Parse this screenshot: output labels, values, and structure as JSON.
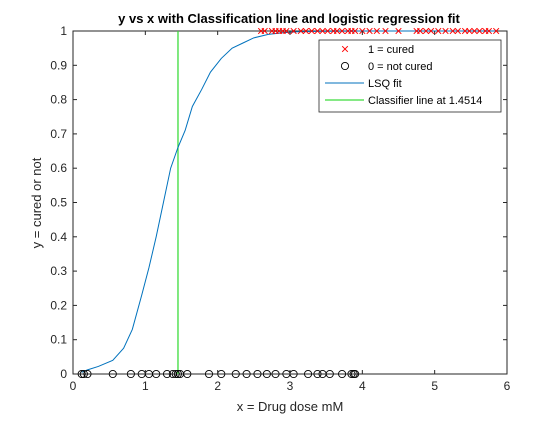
{
  "chart_data": {
    "type": "scatter",
    "title": "y vs x with Classification line and logistic regression fit",
    "xlabel": "x = Drug dose mM",
    "ylabel": "y = cured or not",
    "xlim": [
      0,
      6
    ],
    "ylim": [
      0,
      1
    ],
    "xticks": [
      0,
      1,
      2,
      3,
      4,
      5,
      6
    ],
    "yticks": [
      0,
      0.1,
      0.2,
      0.3,
      0.4,
      0.5,
      0.6,
      0.7,
      0.8,
      0.9,
      1
    ],
    "xtick_labels": [
      "0",
      "1",
      "2",
      "3",
      "4",
      "5",
      "6"
    ],
    "ytick_labels": [
      "0",
      "0.1",
      "0.2",
      "0.3",
      "0.4",
      "0.5",
      "0.6",
      "0.7",
      "0.8",
      "0.9",
      "1"
    ],
    "grid": false,
    "legend_position": "top-right",
    "series": [
      {
        "name": "1 = cured",
        "kind": "scatter",
        "marker": "x",
        "color": "#ff0000",
        "x": [
          2.6,
          2.65,
          2.75,
          2.8,
          2.85,
          2.9,
          2.95,
          3.05,
          3.15,
          3.22,
          3.3,
          3.38,
          3.45,
          3.52,
          3.6,
          3.65,
          3.72,
          3.8,
          3.85,
          3.9,
          4.0,
          4.1,
          4.2,
          4.32,
          4.5,
          4.75,
          4.8,
          4.88,
          4.95,
          5.05,
          5.15,
          5.25,
          5.32,
          5.42,
          5.48,
          5.55,
          5.62,
          5.7,
          5.75,
          5.85
        ],
        "y": [
          1,
          1,
          1,
          1,
          1,
          1,
          1,
          1,
          1,
          1,
          1,
          1,
          1,
          1,
          1,
          1,
          1,
          1,
          1,
          1,
          1,
          1,
          1,
          1,
          1,
          1,
          1,
          1,
          1,
          1,
          1,
          1,
          1,
          1,
          1,
          1,
          1,
          1,
          1,
          1
        ]
      },
      {
        "name": "0 = not cured",
        "kind": "scatter",
        "marker": "o",
        "color": "#000000",
        "x": [
          0.12,
          0.15,
          0.2,
          0.55,
          0.8,
          0.95,
          1.05,
          1.15,
          1.3,
          1.38,
          1.42,
          1.45,
          1.48,
          1.58,
          1.88,
          2.05,
          2.25,
          2.4,
          2.55,
          2.68,
          2.8,
          2.95,
          3.05,
          3.25,
          3.38,
          3.45,
          3.55,
          3.72,
          3.85,
          3.88,
          3.9
        ],
        "y": [
          0,
          0,
          0,
          0,
          0,
          0,
          0,
          0,
          0,
          0,
          0,
          0,
          0,
          0,
          0,
          0,
          0,
          0,
          0,
          0,
          0,
          0,
          0,
          0,
          0,
          0,
          0,
          0,
          0,
          0,
          0
        ]
      },
      {
        "name": "LSQ fit",
        "kind": "line",
        "color": "#0072bd",
        "x": [
          0.12,
          0.2,
          0.35,
          0.55,
          0.7,
          0.82,
          0.95,
          1.05,
          1.15,
          1.25,
          1.35,
          1.45,
          1.55,
          1.65,
          1.78,
          1.9,
          2.05,
          2.2,
          2.35,
          2.5,
          2.7,
          2.9,
          3.1,
          3.4,
          4.0,
          5.0,
          5.85
        ],
        "y": [
          0.005,
          0.012,
          0.022,
          0.04,
          0.075,
          0.13,
          0.23,
          0.31,
          0.4,
          0.5,
          0.6,
          0.66,
          0.71,
          0.78,
          0.83,
          0.88,
          0.92,
          0.95,
          0.965,
          0.98,
          0.99,
          0.995,
          0.998,
          0.999,
          1.0,
          1.0,
          1.0
        ]
      },
      {
        "name": "Classifier line at 1.4514",
        "kind": "vline",
        "color": "#3cdc3c",
        "x": [
          1.4514,
          1.4514
        ],
        "y": [
          0,
          1
        ]
      }
    ]
  }
}
